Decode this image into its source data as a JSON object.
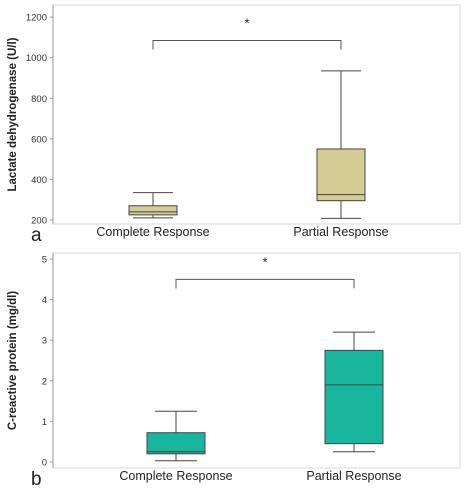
{
  "chart_data": [
    {
      "type": "box",
      "panel_label": "a",
      "ylabel": "Lactate dehydrogenase (U/l)",
      "yticks": [
        200,
        400,
        600,
        800,
        1000,
        1200
      ],
      "ylim": [
        180,
        1260
      ],
      "categories": [
        "Complete Response",
        "Partial Response"
      ],
      "boxes": [
        {
          "category": "Complete Response",
          "min": 210,
          "q1": 225,
          "median": 240,
          "q3": 270,
          "max": 335
        },
        {
          "category": "Partial Response",
          "min": 208,
          "q1": 295,
          "median": 325,
          "q3": 550,
          "max": 935
        }
      ],
      "significance": {
        "label": "*",
        "between": [
          0,
          1
        ],
        "y": 1085
      },
      "fill_color": "#d4cc94",
      "grid": false
    },
    {
      "type": "box",
      "panel_label": "b",
      "ylabel": "C-reactive protein (mg/dl)",
      "yticks": [
        0,
        1,
        2,
        3,
        4,
        5
      ],
      "ylim": [
        -0.15,
        5.15
      ],
      "categories": [
        "Complete Response",
        "Partial Response"
      ],
      "boxes": [
        {
          "category": "Complete Response",
          "min": 0.03,
          "q1": 0.2,
          "median": 0.25,
          "q3": 0.72,
          "max": 1.25
        },
        {
          "category": "Partial Response",
          "min": 0.25,
          "q1": 0.45,
          "median": 1.9,
          "q3": 2.75,
          "max": 3.2
        }
      ],
      "significance": {
        "label": "*",
        "between": [
          0,
          1
        ],
        "y": 4.5
      },
      "fill_color": "#18b69c",
      "grid": false
    }
  ]
}
